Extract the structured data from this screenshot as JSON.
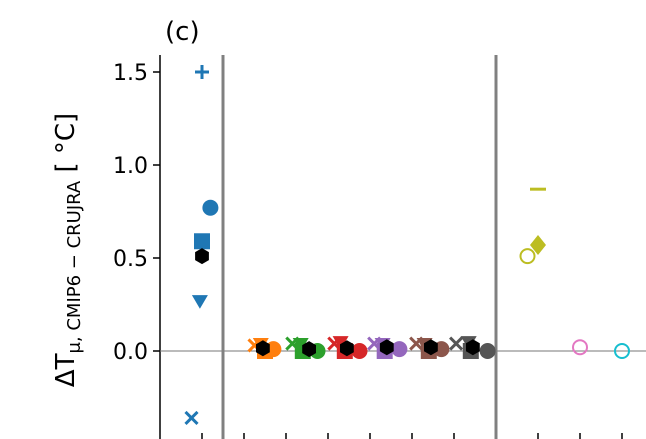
{
  "chart_data": {
    "type": "scatter",
    "panel_label": "(c)",
    "ylabel": {
      "main": "ΔT",
      "subscript": "μ, CMIP6 − CRUJRA",
      "unit": " [ °C]"
    },
    "ylim": [
      -0.45,
      1.6
    ],
    "yticks": [
      {
        "value": 0.0,
        "label": "0.0"
      },
      {
        "value": 0.5,
        "label": "0.5"
      },
      {
        "value": 1.0,
        "label": "1.0"
      },
      {
        "value": 1.5,
        "label": "1.5"
      }
    ],
    "x_slots": 11,
    "separators": [
      1.5,
      8.0
    ],
    "zero_line": true,
    "colors": {
      "blue": "#1f77b4",
      "orange": "#ff7f0e",
      "green": "#2ca02c",
      "red": "#d62728",
      "purple": "#9467bd",
      "brown": "#8c564b",
      "gray": "#555555",
      "black": "#000000",
      "olive": "#bcbd22",
      "pink": "#e377c2",
      "cyan": "#17becf"
    },
    "points": [
      {
        "x": 1.0,
        "y": 1.5,
        "marker": "plus",
        "color": "blue"
      },
      {
        "x": 1.2,
        "y": 0.77,
        "marker": "circle",
        "color": "blue"
      },
      {
        "x": 1.0,
        "y": 0.59,
        "marker": "square",
        "color": "blue"
      },
      {
        "x": 1.0,
        "y": 0.51,
        "marker": "hexagon",
        "color": "black"
      },
      {
        "x": 0.95,
        "y": 0.27,
        "marker": "triangle-down",
        "color": "blue"
      },
      {
        "x": 0.75,
        "y": -0.36,
        "marker": "x",
        "color": "blue"
      },
      {
        "x": 2.25,
        "y": 0.03,
        "marker": "x",
        "color": "orange"
      },
      {
        "x": 2.4,
        "y": 0.04,
        "marker": "triangle-down",
        "color": "orange"
      },
      {
        "x": 2.5,
        "y": 0.0,
        "marker": "square",
        "color": "orange"
      },
      {
        "x": 2.7,
        "y": 0.01,
        "marker": "circle",
        "color": "orange"
      },
      {
        "x": 2.45,
        "y": 0.015,
        "marker": "hexagon",
        "color": "black"
      },
      {
        "x": 3.15,
        "y": 0.04,
        "marker": "x",
        "color": "green"
      },
      {
        "x": 3.35,
        "y": 0.04,
        "marker": "triangle-down",
        "color": "green"
      },
      {
        "x": 3.4,
        "y": 0.0,
        "marker": "square",
        "color": "green"
      },
      {
        "x": 3.75,
        "y": 0.0,
        "marker": "circle",
        "color": "green"
      },
      {
        "x": 3.55,
        "y": 0.01,
        "marker": "hexagon",
        "color": "black"
      },
      {
        "x": 4.15,
        "y": 0.04,
        "marker": "x",
        "color": "red"
      },
      {
        "x": 4.3,
        "y": 0.05,
        "marker": "triangle-down",
        "color": "red"
      },
      {
        "x": 4.4,
        "y": 0.0,
        "marker": "square",
        "color": "red"
      },
      {
        "x": 4.75,
        "y": 0.0,
        "marker": "circle",
        "color": "red"
      },
      {
        "x": 4.45,
        "y": 0.015,
        "marker": "hexagon",
        "color": "black"
      },
      {
        "x": 5.1,
        "y": 0.04,
        "marker": "x",
        "color": "purple"
      },
      {
        "x": 5.3,
        "y": 0.04,
        "marker": "triangle-down",
        "color": "purple"
      },
      {
        "x": 5.35,
        "y": 0.0,
        "marker": "square",
        "color": "purple"
      },
      {
        "x": 5.7,
        "y": 0.01,
        "marker": "circle",
        "color": "purple"
      },
      {
        "x": 5.4,
        "y": 0.02,
        "marker": "hexagon",
        "color": "black"
      },
      {
        "x": 6.1,
        "y": 0.04,
        "marker": "x",
        "color": "brown"
      },
      {
        "x": 6.3,
        "y": 0.04,
        "marker": "triangle-down",
        "color": "brown"
      },
      {
        "x": 6.4,
        "y": 0.0,
        "marker": "square",
        "color": "brown"
      },
      {
        "x": 6.7,
        "y": 0.01,
        "marker": "circle",
        "color": "brown"
      },
      {
        "x": 6.45,
        "y": 0.02,
        "marker": "hexagon",
        "color": "black"
      },
      {
        "x": 7.05,
        "y": 0.04,
        "marker": "x",
        "color": "gray"
      },
      {
        "x": 7.35,
        "y": 0.05,
        "marker": "triangle-down",
        "color": "gray"
      },
      {
        "x": 7.4,
        "y": 0.0,
        "marker": "square",
        "color": "gray"
      },
      {
        "x": 7.8,
        "y": 0.0,
        "marker": "circle",
        "color": "gray"
      },
      {
        "x": 7.45,
        "y": 0.02,
        "marker": "hexagon",
        "color": "black"
      },
      {
        "x": 9.0,
        "y": 0.87,
        "marker": "hline",
        "color": "olive"
      },
      {
        "x": 9.0,
        "y": 0.57,
        "marker": "diamond",
        "color": "olive"
      },
      {
        "x": 8.75,
        "y": 0.51,
        "marker": "circle-open",
        "color": "olive"
      },
      {
        "x": 10.0,
        "y": 0.02,
        "marker": "circle-open",
        "color": "pink"
      },
      {
        "x": 11.0,
        "y": 0.0,
        "marker": "circle-open",
        "color": "cyan"
      }
    ]
  }
}
